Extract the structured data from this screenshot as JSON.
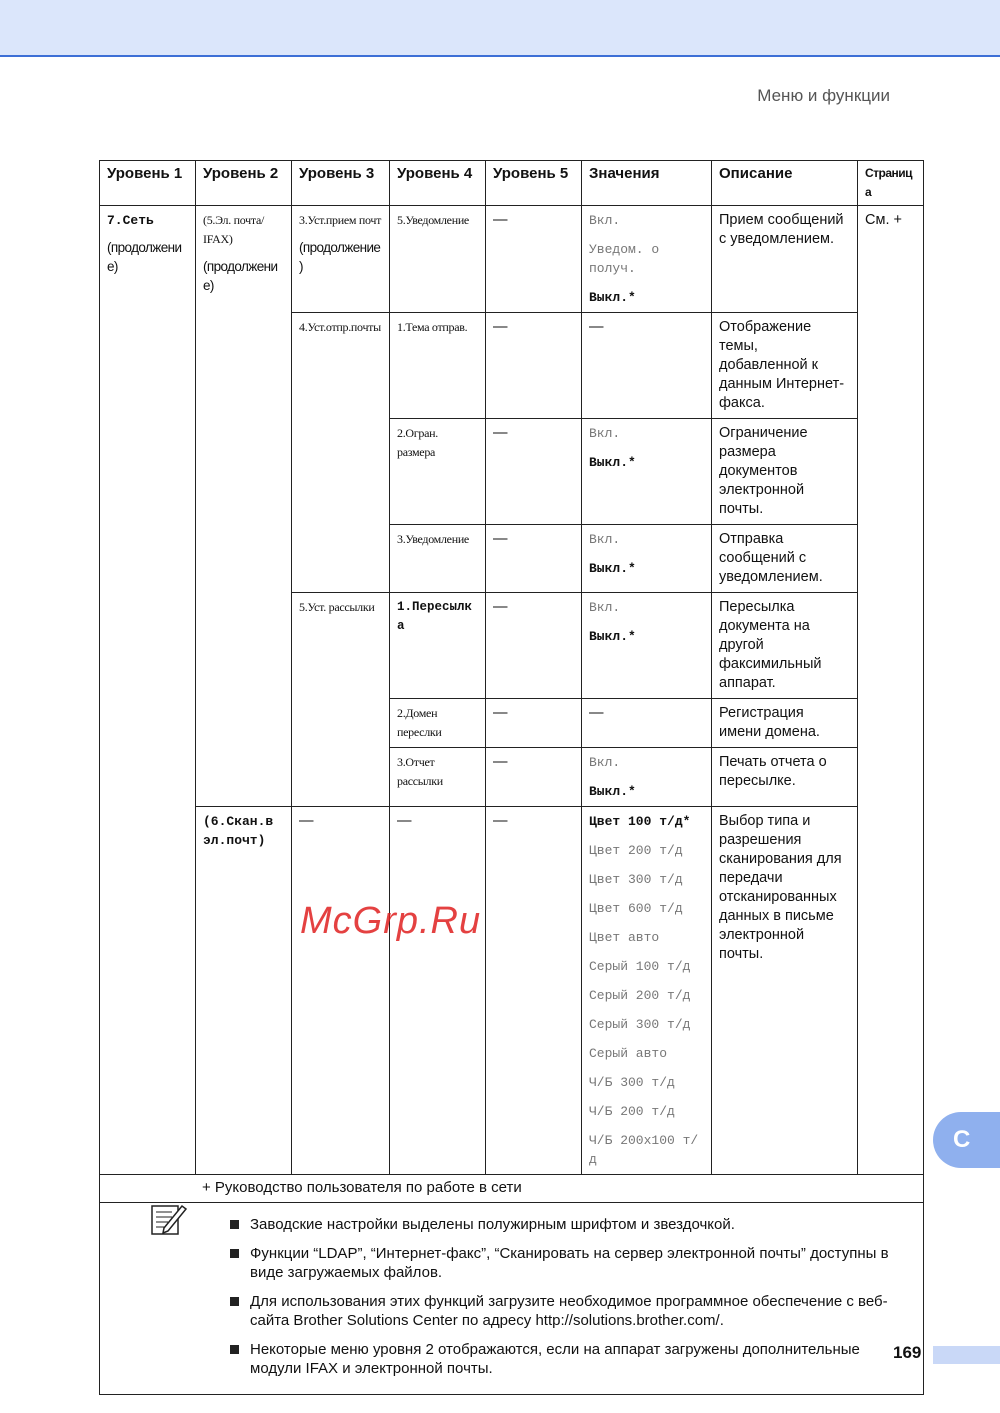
{
  "header": {
    "section": "Меню и функции"
  },
  "table": {
    "headers": [
      "Уровень 1",
      "Уровень 2",
      "Уровень 3",
      "Уровень 4",
      "Уровень 5",
      "Значения",
      "Описание",
      "Страница"
    ],
    "l1": "7.Сеть",
    "l1_cont": "(продолжение)",
    "l2a": "(5.Эл. почта/ IFAX)",
    "l2a_cont": "(продолжение)",
    "l2b": "(6.Скан.в эл.почт)",
    "l3a": "3.Уст.прием почт",
    "l3a_cont": "(продолжение)",
    "l3b": "4.Уст.отпр.почты",
    "l3c": "5.Уст. рассылки",
    "dash": "—",
    "page": "См. +",
    "rows": [
      {
        "l4": "5.Уведомление",
        "vals": [
          "Вкл.",
          "Уведом. о получ.",
          "Выкл.*"
        ],
        "desc": "Прием сообщений с уведомлением."
      },
      {
        "l4": "1.Тема отправ.",
        "vals": [
          "—"
        ],
        "desc": "Отображение темы, добавленной к данным Интернет-факса."
      },
      {
        "l4": "2.Огран. размера",
        "vals": [
          "Вкл.",
          "Выкл.*"
        ],
        "desc": "Ограничение размера документов электронной почты."
      },
      {
        "l4": "3.Уведомление",
        "vals": [
          "Вкл.",
          "Выкл.*"
        ],
        "desc": "Отправка сообщений с уведомлением."
      },
      {
        "l4": "1.Пересылка",
        "vals": [
          "Вкл.",
          "Выкл.*"
        ],
        "desc": "Пересылка документа на другой факсимильный аппарат."
      },
      {
        "l4": "2.Домен переслки",
        "vals": [
          "—"
        ],
        "desc": "Регистрация имени домена."
      },
      {
        "l4": "3.Отчет рассылки",
        "vals": [
          "Вкл.",
          "Выкл.*"
        ],
        "desc": "Печать отчета о пересылке."
      },
      {
        "l4": "—",
        "vals": [
          "Цвет 100 т/д*",
          "Цвет 200 т/д",
          "Цвет 300 т/д",
          "Цвет 600 т/д",
          "Цвет авто",
          "Серый 100 т/д",
          "Серый 200 т/д",
          "Серый 300 т/д",
          "Серый авто",
          "Ч/Б 300 т/д",
          "Ч/Б 200 т/д",
          "Ч/Б 200x100 т/д"
        ],
        "desc": "Выбор типа и разрешения сканирования для передачи отсканированных данных в письме электронной почты."
      }
    ],
    "footnote": "+ Руководство пользователя по работе в сети"
  },
  "notes": [
    "Заводские настройки выделены полужирным шрифтом и звездочкой.",
    "Функции “LDAP”, “Интернет-факс”, “Сканировать на сервер электронной почты” доступны в виде загружаемых файлов.",
    "Некоторые меню уровня 2 отображаются, если на аппарат загружены дополнительные модули IFAX и электронной почты."
  ],
  "note3": {
    "before": "Для использования этих функций загрузите необходимое программное обеспечение с веб-сайта Brother Solutions Center по адресу ",
    "link": "http://solutions.brother.com/",
    "after": "."
  },
  "tab_letter": "C",
  "page_number": "169",
  "watermark": "McGrp.Ru"
}
